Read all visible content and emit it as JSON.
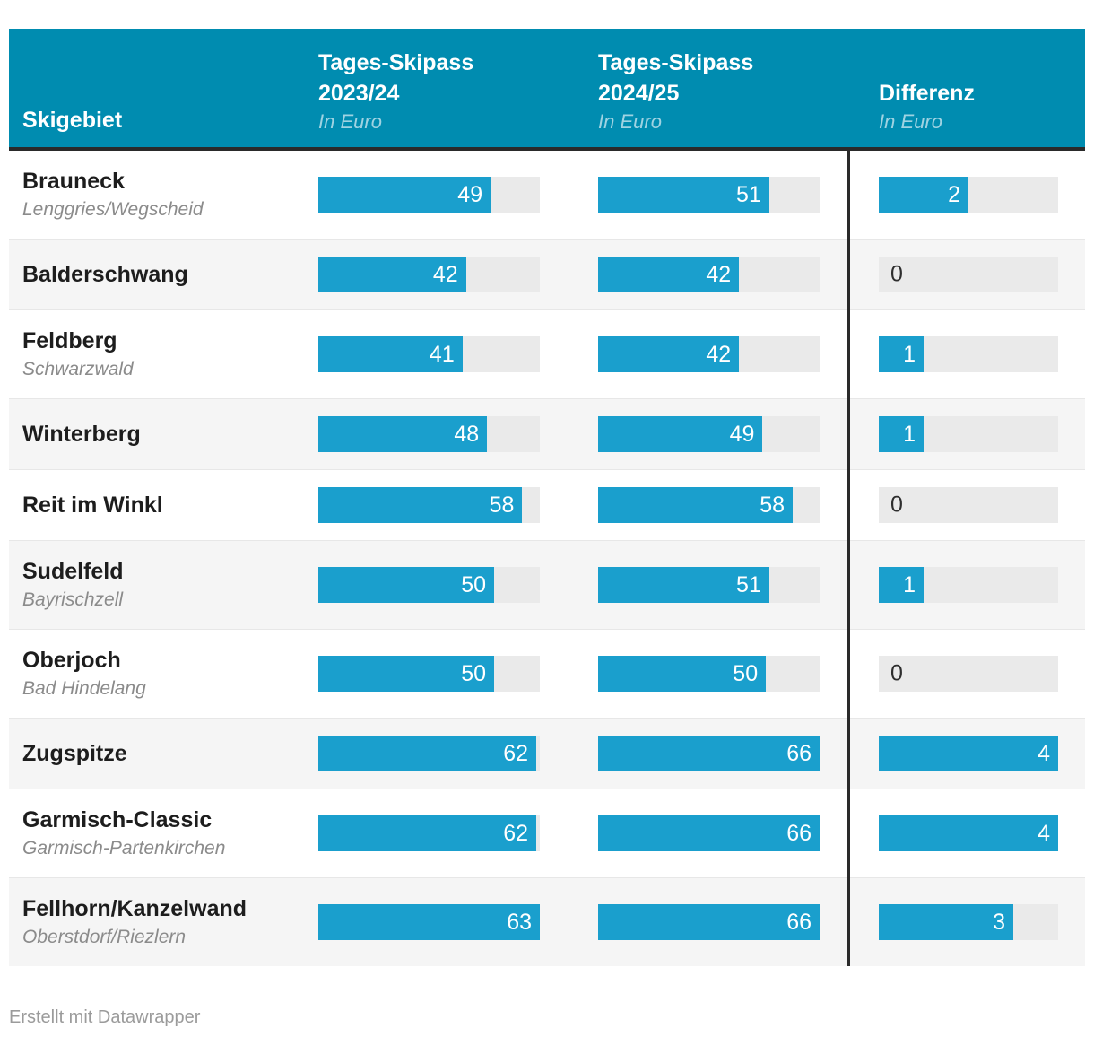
{
  "header": {
    "skigebiet": "Skigebiet",
    "col_2023": {
      "line1": "Tages-Skipass",
      "line2": "2023/24",
      "sub": "In Euro"
    },
    "col_2024": {
      "line1": "Tages-Skipass",
      "line2": "2024/25",
      "sub": "In Euro"
    },
    "diff": {
      "line1": "Differenz",
      "sub": "In Euro"
    }
  },
  "rows": [
    {
      "name": "Brauneck",
      "subtitle": "Lenggries/Wegscheid",
      "price_2023": 49,
      "price_2024": 51,
      "diff": 2
    },
    {
      "name": "Balderschwang",
      "subtitle": "",
      "price_2023": 42,
      "price_2024": 42,
      "diff": 0
    },
    {
      "name": "Feldberg",
      "subtitle": "Schwarzwald",
      "price_2023": 41,
      "price_2024": 42,
      "diff": 1
    },
    {
      "name": "Winterberg",
      "subtitle": "",
      "price_2023": 48,
      "price_2024": 49,
      "diff": 1
    },
    {
      "name": "Reit im Winkl",
      "subtitle": "",
      "price_2023": 58,
      "price_2024": 58,
      "diff": 0
    },
    {
      "name": "Sudelfeld",
      "subtitle": "Bayrischzell",
      "price_2023": 50,
      "price_2024": 51,
      "diff": 1
    },
    {
      "name": "Oberjoch",
      "subtitle": "Bad Hindelang",
      "price_2023": 50,
      "price_2024": 50,
      "diff": 0
    },
    {
      "name": "Zugspitze",
      "subtitle": "",
      "price_2023": 62,
      "price_2024": 66,
      "diff": 4
    },
    {
      "name": "Garmisch-Classic",
      "subtitle": "Garmisch-Partenkirchen",
      "price_2023": 62,
      "price_2024": 66,
      "diff": 4
    },
    {
      "name": "Fellhorn/Kanzelwand",
      "subtitle": "Oberstdorf/Riezlern",
      "price_2023": 63,
      "price_2024": 66,
      "diff": 3
    }
  ],
  "scales": {
    "col_2023_max": 63,
    "col_2024_max": 66,
    "diff_max": 4
  },
  "footer": {
    "text": "Erstellt mit Datawrapper"
  },
  "colors": {
    "header_bg": "#008cb0",
    "header_sub": "#9fd3e2",
    "bar": "#1a9fcd",
    "track": "#eaeaea",
    "row_alt": "#f5f5f5",
    "divider": "#2a2a2a",
    "name": "#1d1d1d",
    "subtitle": "#8b8b8b",
    "zero": "#2e2e2e",
    "footer": "#9b9b9b"
  },
  "chart_data": {
    "type": "bar",
    "title": "",
    "orientation": "horizontal",
    "unit": "Euro",
    "categories": [
      "Brauneck",
      "Balderschwang",
      "Feldberg",
      "Winterberg",
      "Reit im Winkl",
      "Sudelfeld",
      "Oberjoch",
      "Zugspitze",
      "Garmisch-Classic",
      "Fellhorn/Kanzelwand"
    ],
    "category_subtitles": [
      "Lenggries/Wegscheid",
      "",
      "Schwarzwald",
      "",
      "",
      "Bayrischzell",
      "Bad Hindelang",
      "",
      "Garmisch-Partenkirchen",
      "Oberstdorf/Riezlern"
    ],
    "series": [
      {
        "name": "Tages-Skipass 2023/24 (In Euro)",
        "values": [
          49,
          42,
          41,
          48,
          58,
          50,
          50,
          62,
          62,
          63
        ],
        "axis_max": 63
      },
      {
        "name": "Tages-Skipass 2024/25 (In Euro)",
        "values": [
          51,
          42,
          42,
          49,
          58,
          51,
          50,
          66,
          66,
          66
        ],
        "axis_max": 66
      },
      {
        "name": "Differenz (In Euro)",
        "values": [
          2,
          0,
          1,
          1,
          0,
          1,
          0,
          4,
          4,
          3
        ],
        "axis_max": 4
      }
    ],
    "legend_position": "header-row",
    "grid": false,
    "value_labels": "inside-bar-right, zero values as plain text"
  }
}
